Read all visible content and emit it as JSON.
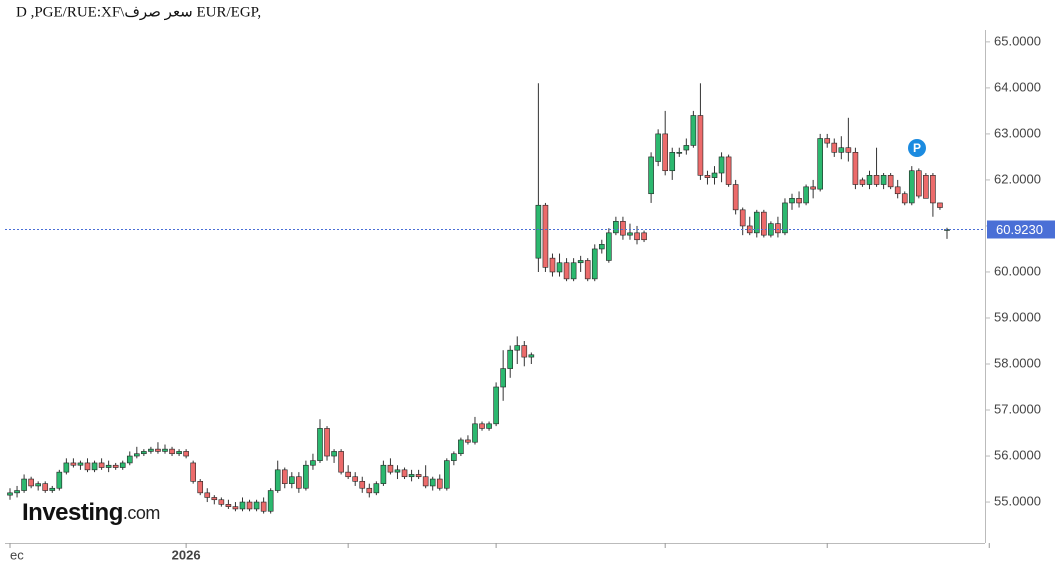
{
  "chart_data": {
    "type": "candlestick",
    "title": "D ,PGE/RUE:XF\\سعر صرف EUR/EGP,",
    "up_color": "#2cb86f",
    "down_color": "#ec6b6b",
    "wick_color": "#333333",
    "xlim": [
      0,
      133
    ],
    "xticks": [
      {
        "value": 0,
        "label": "ec"
      },
      {
        "value": 25,
        "label": "2026"
      },
      48,
      69,
      93,
      116,
      139
    ],
    "ylim": [
      54.11,
      65.91
    ],
    "yticks": [
      {
        "value": 55,
        "label": "55.0000"
      },
      {
        "value": 56,
        "label": "56.0000"
      },
      {
        "value": 57,
        "label": "57.0000"
      },
      {
        "value": 58,
        "label": "58.0000"
      },
      {
        "value": 59,
        "label": "59.0000"
      },
      {
        "value": 60,
        "label": "60.0000"
      },
      {
        "value": 61,
        "label": "61.0000"
      },
      {
        "value": 62,
        "label": "62.0000"
      },
      {
        "value": 63,
        "label": "63.0000"
      },
      {
        "value": 64,
        "label": "64.0000"
      },
      {
        "value": 65,
        "label": "65.0000"
      }
    ],
    "last_price": {
      "value": 60.923,
      "label": "60.9230",
      "color": "#4a6fd6"
    },
    "badge": "P",
    "logo": {
      "brand": "Investing",
      "suffix": ".com"
    },
    "open": [
      55.15,
      55.2,
      55.25,
      55.5,
      55.35,
      55.4,
      55.25,
      55.3,
      55.65,
      55.85,
      55.8,
      55.85,
      55.7,
      55.85,
      55.75,
      55.8,
      55.75,
      55.85,
      56.0,
      56.05,
      56.1,
      56.15,
      56.1,
      56.15,
      56.05,
      56.1,
      55.85,
      55.45,
      55.2,
      55.1,
      55.05,
      54.95,
      54.9,
      54.85,
      55.0,
      54.85,
      55.0,
      54.8,
      55.25,
      55.7,
      55.4,
      55.55,
      55.3,
      55.8,
      55.9,
      56.6,
      56.0,
      56.1,
      55.65,
      55.55,
      55.45,
      55.3,
      55.2,
      55.4,
      55.8,
      55.65,
      55.7,
      55.55,
      55.6,
      55.55,
      55.35,
      55.5,
      55.3,
      55.9,
      56.05,
      56.35,
      56.3,
      56.7,
      56.6,
      56.7,
      57.5,
      57.9,
      58.3,
      58.4,
      58.15,
      60.3,
      61.45,
      60.3,
      60.0,
      60.2,
      59.85,
      60.2,
      60.25,
      59.85,
      60.5,
      60.25,
      60.85,
      61.1,
      60.8,
      60.85,
      60.85,
      61.7,
      62.4,
      63.0,
      62.2,
      62.6,
      62.65,
      62.75,
      63.4,
      62.1,
      62.05,
      62.15,
      62.5,
      61.9,
      61.35,
      61.0,
      60.85,
      61.3,
      60.8,
      61.05,
      60.85,
      61.5,
      61.6,
      61.5,
      61.85,
      61.8,
      62.9,
      62.8,
      62.6,
      62.7,
      62.6,
      62.0,
      61.9,
      62.1,
      61.9,
      62.1,
      61.85,
      61.7,
      61.5,
      62.2,
      62.1,
      62.1,
      61.5,
      60.92
    ],
    "high": [
      55.3,
      55.35,
      55.6,
      55.55,
      55.45,
      55.45,
      55.35,
      55.7,
      55.95,
      55.95,
      55.9,
      55.95,
      55.9,
      55.95,
      55.9,
      55.85,
      55.9,
      56.1,
      56.2,
      56.15,
      56.2,
      56.3,
      56.25,
      56.2,
      56.15,
      56.15,
      55.9,
      55.5,
      55.3,
      55.15,
      55.1,
      55.05,
      55.0,
      55.1,
      55.05,
      55.05,
      55.1,
      55.3,
      55.9,
      55.75,
      55.65,
      55.65,
      55.9,
      56.05,
      56.8,
      56.65,
      56.15,
      56.15,
      55.8,
      55.65,
      55.55,
      55.4,
      55.45,
      55.9,
      55.95,
      55.8,
      55.75,
      55.7,
      55.7,
      55.8,
      55.55,
      55.6,
      55.95,
      56.1,
      56.4,
      56.45,
      56.85,
      56.75,
      56.75,
      57.6,
      58.3,
      58.4,
      58.6,
      58.5,
      58.25,
      64.1,
      61.5,
      60.4,
      60.4,
      60.3,
      60.3,
      60.35,
      60.3,
      60.6,
      60.7,
      60.95,
      61.2,
      61.2,
      61.05,
      61.0,
      60.9,
      62.6,
      63.1,
      63.5,
      62.7,
      62.7,
      62.9,
      63.5,
      64.1,
      62.2,
      62.3,
      62.6,
      62.55,
      62.0,
      61.4,
      61.2,
      61.35,
      61.35,
      61.1,
      61.2,
      61.6,
      61.7,
      61.75,
      61.9,
      62.0,
      63.0,
      63.0,
      62.9,
      62.95,
      63.35,
      62.7,
      62.05,
      62.2,
      62.7,
      62.15,
      62.15,
      62.0,
      61.75,
      62.3,
      62.25,
      62.15,
      62.15,
      61.5,
      60.96
    ],
    "low": [
      55.05,
      55.1,
      55.2,
      55.3,
      55.25,
      55.2,
      55.2,
      55.25,
      55.6,
      55.75,
      55.7,
      55.65,
      55.65,
      55.7,
      55.65,
      55.7,
      55.7,
      55.8,
      55.95,
      56.0,
      56.05,
      56.05,
      56.05,
      56.0,
      56.0,
      55.95,
      55.4,
      55.15,
      55.0,
      54.95,
      54.9,
      54.85,
      54.8,
      54.8,
      54.8,
      54.8,
      54.75,
      54.75,
      55.2,
      55.3,
      55.3,
      55.2,
      55.25,
      55.7,
      55.85,
      55.9,
      55.85,
      55.6,
      55.5,
      55.35,
      55.2,
      55.1,
      55.15,
      55.35,
      55.6,
      55.5,
      55.5,
      55.45,
      55.5,
      55.3,
      55.25,
      55.25,
      55.25,
      55.8,
      56.0,
      56.25,
      56.25,
      56.55,
      56.55,
      56.65,
      57.2,
      57.7,
      58.0,
      57.95,
      58.0,
      60.0,
      60.0,
      59.9,
      59.9,
      59.8,
      59.8,
      60.0,
      59.8,
      59.8,
      60.4,
      60.2,
      60.8,
      60.7,
      60.7,
      60.6,
      60.65,
      61.5,
      62.3,
      62.1,
      62.0,
      62.5,
      62.55,
      62.7,
      62.0,
      61.9,
      61.9,
      61.95,
      61.85,
      61.25,
      60.8,
      60.8,
      60.75,
      60.75,
      60.75,
      60.75,
      60.8,
      61.35,
      61.4,
      61.45,
      61.6,
      61.75,
      62.7,
      62.5,
      62.45,
      62.4,
      61.8,
      61.85,
      61.8,
      61.85,
      61.8,
      61.8,
      61.6,
      61.45,
      61.45,
      61.6,
      61.6,
      61.2,
      61.35,
      60.72
    ],
    "close": [
      55.2,
      55.25,
      55.5,
      55.35,
      55.4,
      55.25,
      55.3,
      55.65,
      55.85,
      55.8,
      55.85,
      55.7,
      55.85,
      55.75,
      55.8,
      55.75,
      55.85,
      56.0,
      56.05,
      56.1,
      56.15,
      56.1,
      56.15,
      56.05,
      56.1,
      56.0,
      55.45,
      55.2,
      55.1,
      55.05,
      54.95,
      54.9,
      54.85,
      55.0,
      54.85,
      55.0,
      54.8,
      55.25,
      55.7,
      55.4,
      55.55,
      55.3,
      55.8,
      55.9,
      56.6,
      56.0,
      56.1,
      55.65,
      55.55,
      55.45,
      55.3,
      55.2,
      55.4,
      55.8,
      55.65,
      55.7,
      55.55,
      55.6,
      55.55,
      55.35,
      55.5,
      55.3,
      55.9,
      56.05,
      56.35,
      56.3,
      56.7,
      56.6,
      56.7,
      57.5,
      57.9,
      58.3,
      58.4,
      58.15,
      58.2,
      61.45,
      60.1,
      60.0,
      60.2,
      59.85,
      60.2,
      60.25,
      59.85,
      60.5,
      60.6,
      60.85,
      61.1,
      60.8,
      60.85,
      60.7,
      60.7,
      62.5,
      63.0,
      62.2,
      62.6,
      62.6,
      62.75,
      63.4,
      62.1,
      62.05,
      62.15,
      62.5,
      61.9,
      61.35,
      61.0,
      60.85,
      61.3,
      60.8,
      61.05,
      60.85,
      61.5,
      61.6,
      61.5,
      61.85,
      61.8,
      62.9,
      62.8,
      62.6,
      62.7,
      62.6,
      61.9,
      61.9,
      62.1,
      61.9,
      62.1,
      61.85,
      61.7,
      61.5,
      62.2,
      61.65,
      61.6,
      61.5,
      61.4,
      60.923
    ]
  }
}
